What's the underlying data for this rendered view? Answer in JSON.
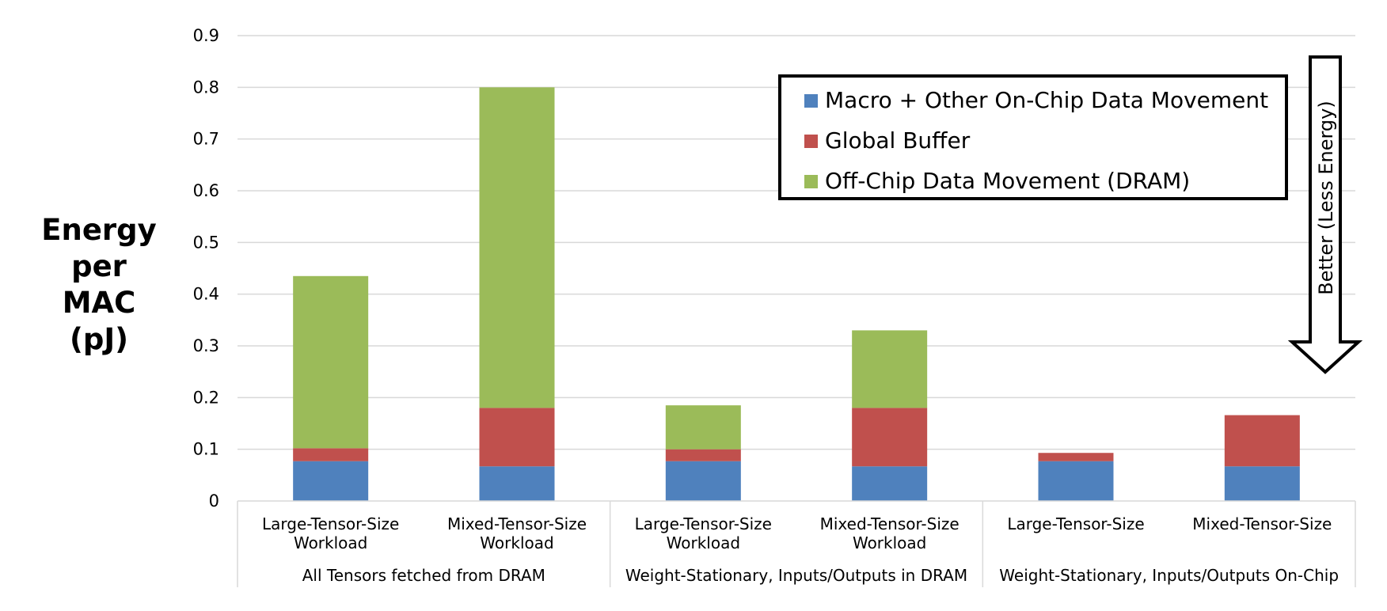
{
  "chart_data": {
    "type": "bar",
    "stacked": true,
    "ylabel_lines": [
      "Energy",
      "per",
      "MAC (pJ)"
    ],
    "ylim": [
      0,
      0.9
    ],
    "yticks": [
      "0",
      "0.1",
      "0.2",
      "0.3",
      "0.4",
      "0.5",
      "0.6",
      "0.7",
      "0.8",
      "0.9"
    ],
    "grid": true,
    "groups": [
      {
        "label": "All Tensors fetched from DRAM",
        "categories": [
          [
            "Large-Tensor-Size",
            "Workload"
          ],
          [
            "Mixed-Tensor-Size",
            "Workload"
          ]
        ]
      },
      {
        "label": "Weight-Stationary, Inputs/Outputs in DRAM",
        "categories": [
          [
            "Large-Tensor-Size",
            "Workload"
          ],
          [
            "Mixed-Tensor-Size",
            "Workload"
          ]
        ]
      },
      {
        "label": "Weight-Stationary, Inputs/Outputs On-Chip",
        "categories": [
          [
            "Large-Tensor-Size"
          ],
          [
            "Mixed-Tensor-Size"
          ]
        ]
      }
    ],
    "series": [
      {
        "name": "Macro + Other On-Chip Data Movement",
        "color": "#4F81BD",
        "values": [
          0.077,
          0.067,
          0.077,
          0.067,
          0.077,
          0.067
        ]
      },
      {
        "name": "Global Buffer",
        "color": "#C0504D",
        "values": [
          0.025,
          0.113,
          0.023,
          0.113,
          0.016,
          0.099
        ]
      },
      {
        "name": "Off-Chip Data Movement (DRAM)",
        "color": "#9BBB59",
        "values": [
          0.333,
          0.62,
          0.085,
          0.15,
          0,
          0
        ]
      }
    ],
    "legend_position": "top-right",
    "annotation": {
      "text": "Better (Less Energy)",
      "arrow": "down"
    }
  }
}
